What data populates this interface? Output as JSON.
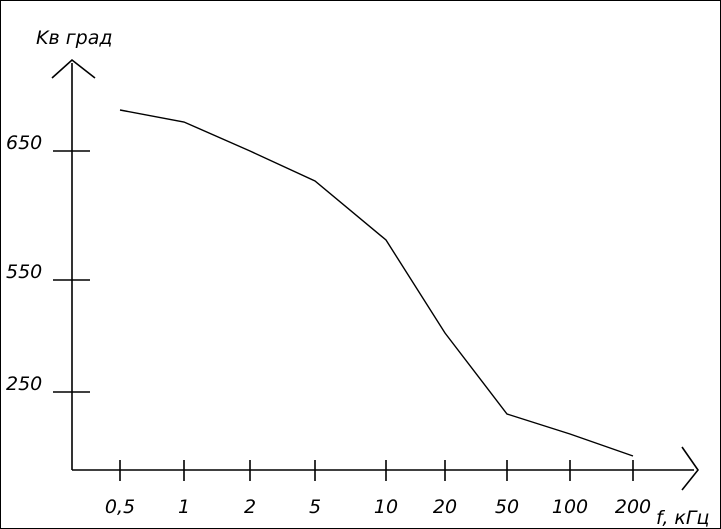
{
  "chart_data": {
    "type": "line",
    "title": "",
    "ylabel": "Kв град",
    "xlabel": "f, кГц",
    "categories": [
      "0,5",
      "1",
      "2",
      "5",
      "10",
      "20",
      "50",
      "100",
      "200"
    ],
    "yticks": [
      {
        "label": "650",
        "value": 650
      },
      {
        "label": "550",
        "value": 550
      },
      {
        "label": "250",
        "value": 250
      }
    ],
    "grid": false,
    "series": [
      {
        "values": [
          660,
          652,
          627,
          600,
          530,
          410,
          310,
          285,
          250
        ]
      }
    ],
    "colors": {
      "line": "#000000",
      "axis": "#000000",
      "text": "#000000"
    }
  }
}
